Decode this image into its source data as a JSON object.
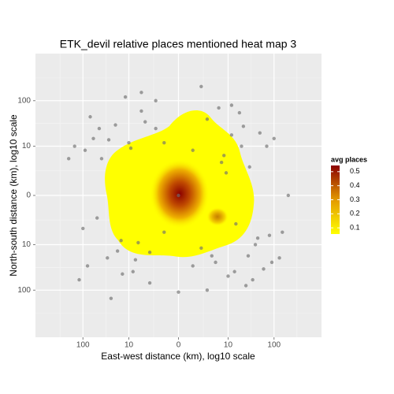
{
  "chart_data": {
    "type": "scatter",
    "title": "ETK_devil relative places mentioned heat map 3",
    "x_label": "East-west distance (km), log10 scale",
    "y_label": "North-south distance (km), log10 scale",
    "xscale": "symlog",
    "yscale": "symlog",
    "xlim": [
      -1000,
      1000
    ],
    "ylim": [
      -1000,
      1000
    ],
    "xticks": [
      {
        "value": -100,
        "label": "100"
      },
      {
        "value": -10,
        "label": "10"
      },
      0,
      10,
      100
    ],
    "yticks": [
      {
        "value": -100,
        "label": "100"
      },
      {
        "value": -10,
        "label": "10"
      },
      0,
      10,
      100
    ],
    "grid": true,
    "color": "#6e6e6e",
    "x": [
      -150,
      -80,
      -60,
      -120,
      -40,
      -30,
      -20,
      -15,
      -10,
      -8,
      -5,
      -3,
      -2,
      -1,
      1,
      2,
      3,
      5,
      8,
      10,
      12,
      15,
      20,
      25,
      30,
      40,
      50,
      60,
      80,
      100,
      150,
      200,
      -25,
      -12,
      -6,
      -4,
      4,
      6,
      14,
      22,
      35,
      -50,
      -70,
      -2,
      0,
      1,
      -1,
      7,
      -7,
      18,
      -18,
      45,
      -45,
      -90,
      90,
      2,
      -3,
      9,
      -9,
      28,
      -28,
      12,
      -14,
      3,
      -5,
      70,
      -100,
      130,
      -200,
      0
    ],
    "values": [
      10,
      -30,
      15,
      -60,
      5,
      -20,
      30,
      -8,
      12,
      -40,
      60,
      -15,
      25,
      -5,
      8,
      -12,
      40,
      -25,
      6,
      -50,
      18,
      -3,
      10,
      -80,
      3,
      -10,
      20,
      -35,
      -6,
      15,
      -5,
      0,
      -150,
      120,
      -9,
      35,
      -18,
      70,
      -40,
      28,
      -60,
      -2,
      45,
      100,
      -110,
      -30,
      12,
      4,
      -22,
      55,
      -14,
      -7,
      25,
      8,
      -25,
      200,
      -70,
      2,
      9,
      -18,
      14,
      80,
      -45,
      -100,
      150,
      10,
      -4,
      -20,
      5,
      0
    ],
    "colorbar": {
      "title": "avg places",
      "lim": [
        0.056,
        0.544
      ],
      "ticks": [
        0.1,
        0.2,
        0.3,
        0.4,
        0.5
      ],
      "colors": [
        "#ffff00",
        "#8b0000"
      ]
    }
  }
}
